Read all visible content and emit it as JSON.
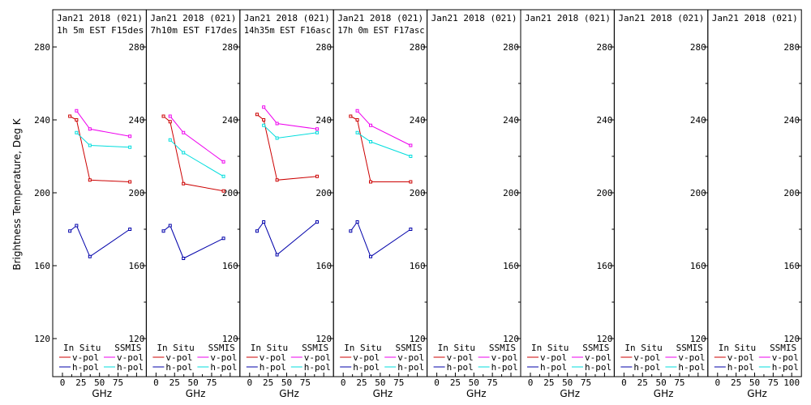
{
  "ylabel": "Brightness Temperature, Deg K",
  "xlabel": "GHz",
  "legend": {
    "in_situ": "In Situ",
    "ssmis": "SSMIS",
    "vpol": "v-pol",
    "hpol": "h-pol"
  },
  "colors": {
    "insitu_v": "#cc0000",
    "insitu_h": "#0000aa",
    "ssmis_v": "#ee00ee",
    "ssmis_h": "#00dddd",
    "frame": "#000000"
  },
  "chart_data": {
    "type": "line",
    "ylim": [
      110,
      295
    ],
    "xlim": [
      0,
      100
    ],
    "y_ticks": [
      120,
      160,
      200,
      240,
      280
    ],
    "x_ticks": [
      0,
      25,
      50,
      75,
      100
    ],
    "x_tick_labels": [
      "0",
      "25",
      "50",
      "75"
    ],
    "x_tick_labels_last": [
      "0",
      "25",
      "50",
      "75",
      "100"
    ],
    "panels": [
      {
        "title1": "Jan21 2018 (021)",
        "title2": "1h 5m  EST F15des",
        "series": [
          {
            "name": "In Situ v-pol",
            "x": [
              10,
              19,
              37,
              91
            ],
            "y": [
              242,
              240,
              207,
              206
            ]
          },
          {
            "name": "In Situ h-pol",
            "x": [
              10,
              19,
              37,
              91
            ],
            "y": [
              179,
              182,
              165,
              180
            ]
          },
          {
            "name": "SSMIS v-pol",
            "x": [
              19,
              37,
              91
            ],
            "y": [
              245,
              235,
              231
            ]
          },
          {
            "name": "SSMIS h-pol",
            "x": [
              19,
              37,
              91
            ],
            "y": [
              233,
              226,
              225
            ]
          }
        ]
      },
      {
        "title1": "Jan21 2018 (021)",
        "title2": "7h10m  EST F17des",
        "series": [
          {
            "name": "In Situ v-pol",
            "x": [
              10,
              19,
              37,
              91
            ],
            "y": [
              242,
              239,
              205,
              201
            ]
          },
          {
            "name": "In Situ h-pol",
            "x": [
              10,
              19,
              37,
              91
            ],
            "y": [
              179,
              182,
              164,
              175
            ]
          },
          {
            "name": "SSMIS v-pol",
            "x": [
              19,
              37,
              91
            ],
            "y": [
              242,
              233,
              217
            ]
          },
          {
            "name": "SSMIS h-pol",
            "x": [
              19,
              37,
              91
            ],
            "y": [
              229,
              222,
              209
            ]
          }
        ]
      },
      {
        "title1": "Jan21 2018 (021)",
        "title2": "14h35m EST F16asc",
        "series": [
          {
            "name": "In Situ v-pol",
            "x": [
              10,
              19,
              37,
              91
            ],
            "y": [
              243,
              240,
              207,
              209
            ]
          },
          {
            "name": "In Situ h-pol",
            "x": [
              10,
              19,
              37,
              91
            ],
            "y": [
              179,
              184,
              166,
              184
            ]
          },
          {
            "name": "SSMIS v-pol",
            "x": [
              19,
              37,
              91
            ],
            "y": [
              247,
              238,
              235
            ]
          },
          {
            "name": "SSMIS h-pol",
            "x": [
              19,
              37,
              91
            ],
            "y": [
              237,
              230,
              233
            ]
          }
        ]
      },
      {
        "title1": "Jan21 2018 (021)",
        "title2": "17h 0m  EST F17asc",
        "series": [
          {
            "name": "In Situ v-pol",
            "x": [
              10,
              19,
              37,
              91
            ],
            "y": [
              242,
              240,
              206,
              206
            ]
          },
          {
            "name": "In Situ h-pol",
            "x": [
              10,
              19,
              37,
              91
            ],
            "y": [
              179,
              184,
              165,
              180
            ]
          },
          {
            "name": "SSMIS v-pol",
            "x": [
              19,
              37,
              91
            ],
            "y": [
              245,
              237,
              226
            ]
          },
          {
            "name": "SSMIS h-pol",
            "x": [
              19,
              37,
              91
            ],
            "y": [
              233,
              228,
              220
            ]
          }
        ]
      },
      {
        "title1": "Jan21 2018 (021)",
        "title2": "",
        "series": []
      },
      {
        "title1": "Jan21 2018 (021)",
        "title2": "",
        "series": []
      },
      {
        "title1": "Jan21 2018 (021)",
        "title2": "",
        "series": []
      },
      {
        "title1": "Jan21 2018 (021)",
        "title2": "",
        "series": []
      }
    ]
  }
}
